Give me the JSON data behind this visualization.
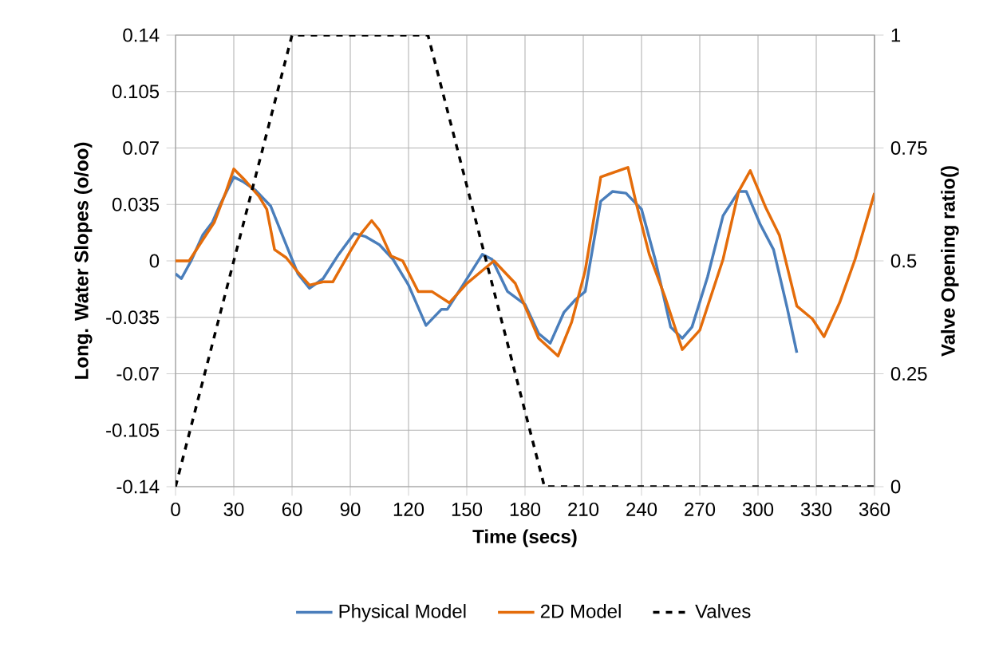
{
  "chart_data": {
    "type": "line",
    "xlabel": "Time (secs)",
    "ylabel": "Long. Water Slopes (o/oo)",
    "y2label": "Valve Opening ratio()",
    "xlim": [
      0,
      360
    ],
    "xticks": [
      0,
      30,
      60,
      90,
      120,
      150,
      180,
      210,
      240,
      270,
      300,
      330,
      360
    ],
    "ylim": [
      -0.14,
      0.14
    ],
    "yticks": [
      -0.14,
      -0.105,
      -0.07,
      -0.035,
      0,
      0.035,
      0.07,
      0.105,
      0.14
    ],
    "y2lim": [
      0,
      1
    ],
    "y2ticks": [
      0,
      0.25,
      0.5,
      0.75,
      1
    ],
    "grid": true,
    "legend": "bottom",
    "series": [
      {
        "name": "Physical Model",
        "color": "#4a7ebb",
        "x": [
          0,
          3,
          8,
          14,
          19,
          23,
          30,
          35,
          41,
          49,
          57,
          63,
          69,
          76,
          84,
          92,
          98,
          105,
          112,
          120,
          129,
          137,
          140,
          148,
          158,
          163,
          171,
          180,
          187,
          193,
          200,
          206,
          211,
          219,
          225,
          232,
          240,
          247,
          255,
          261,
          266,
          274,
          282,
          290,
          294,
          301,
          308,
          315,
          320
        ],
        "values": [
          -0.008,
          -0.011,
          0,
          0.016,
          0.024,
          0.035,
          0.052,
          0.049,
          0.044,
          0.034,
          0.01,
          -0.008,
          -0.017,
          -0.011,
          0.004,
          0.017,
          0.015,
          0.01,
          0.001,
          -0.015,
          -0.04,
          -0.03,
          -0.03,
          -0.015,
          0.004,
          0.001,
          -0.019,
          -0.027,
          -0.045,
          -0.051,
          -0.032,
          -0.024,
          -0.019,
          0.037,
          0.043,
          0.042,
          0.032,
          0.001,
          -0.041,
          -0.048,
          -0.041,
          -0.01,
          0.028,
          0.043,
          0.043,
          0.023,
          0.007,
          -0.029,
          -0.057
        ]
      },
      {
        "name": "2D Model",
        "color": "#e46c0a",
        "x": [
          0,
          7,
          14,
          20,
          26,
          30,
          35,
          43,
          47,
          51,
          57,
          63,
          69,
          76,
          81,
          90,
          95,
          101,
          105,
          111,
          117,
          125,
          132,
          141,
          150,
          164,
          175,
          187,
          197,
          204,
          211,
          219,
          226,
          233,
          237,
          244,
          252,
          261,
          270,
          282,
          290,
          296,
          304,
          311,
          320,
          328,
          334,
          342,
          350,
          360
        ],
        "values": [
          0,
          0,
          0.013,
          0.024,
          0.043,
          0.057,
          0.051,
          0.04,
          0.032,
          0.007,
          0.002,
          -0.007,
          -0.015,
          -0.013,
          -0.013,
          0.006,
          0.016,
          0.025,
          0.019,
          0.003,
          0,
          -0.019,
          -0.019,
          -0.026,
          -0.014,
          0,
          -0.014,
          -0.048,
          -0.059,
          -0.038,
          -0.006,
          0.052,
          0.055,
          0.058,
          0.037,
          0.004,
          -0.022,
          -0.055,
          -0.043,
          0.001,
          0.043,
          0.056,
          0.033,
          0.016,
          -0.028,
          -0.036,
          -0.047,
          -0.026,
          0.001,
          0.042
        ]
      },
      {
        "name": "Valves",
        "color": "#000000",
        "axis": "y2",
        "line_style": "dashed",
        "x": [
          0,
          60,
          130,
          190,
          360
        ],
        "values": [
          0,
          1,
          1,
          0,
          0
        ]
      }
    ]
  }
}
